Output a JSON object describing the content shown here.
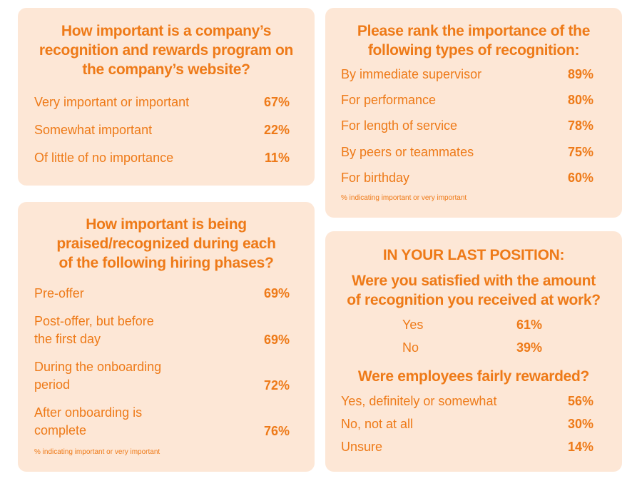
{
  "card1": {
    "title_lines": [
      "How important is a company’s",
      "recognition and rewards program on",
      "the company’s website?"
    ],
    "rows": [
      {
        "label": "Very important or important",
        "value": "67%"
      },
      {
        "label": "Somewhat important",
        "value": "22%"
      },
      {
        "label": "Of little of no importance",
        "value": "11%"
      }
    ]
  },
  "card2": {
    "title_lines": [
      "Please rank the importance of the",
      "following types of recognition:"
    ],
    "rows": [
      {
        "label": "By immediate supervisor",
        "value": "89%"
      },
      {
        "label": "For performance",
        "value": "80%"
      },
      {
        "label": "For length of service",
        "value": "78%"
      },
      {
        "label": "By peers or teammates",
        "value": "75%"
      },
      {
        "label": "For birthday",
        "value": "60%"
      }
    ],
    "footnote": "% indicating important or very important"
  },
  "card3": {
    "title_lines": [
      "How important is being",
      "praised/recognized during each",
      "of the following hiring phases?"
    ],
    "rows": [
      {
        "label_lines": [
          "Pre-offer"
        ],
        "value": "69%"
      },
      {
        "label_lines": [
          "Post-offer, but before",
          "the first day"
        ],
        "value": "69%"
      },
      {
        "label_lines": [
          "During the onboarding",
          "period"
        ],
        "value": "72%"
      },
      {
        "label_lines": [
          "After onboarding is",
          "complete"
        ],
        "value": "76%"
      }
    ],
    "footnote": "% indicating important or very important"
  },
  "card4": {
    "heading": "IN YOUR LAST POSITION:",
    "q1_lines": [
      "Were you satisfied with the amount",
      "of recognition you received at work?"
    ],
    "q1_rows": [
      {
        "label": "Yes",
        "value": "61%"
      },
      {
        "label": "No",
        "value": "39%"
      }
    ],
    "q2": "Were employees fairly rewarded?",
    "q2_rows": [
      {
        "label": "Yes, definitely or somewhat",
        "value": "56%"
      },
      {
        "label": "No, not at all",
        "value": "30%"
      },
      {
        "label": "Unsure",
        "value": "14%"
      }
    ]
  },
  "colors": {
    "card_bg": "#fde7d6",
    "accent": "#ee7a18"
  }
}
